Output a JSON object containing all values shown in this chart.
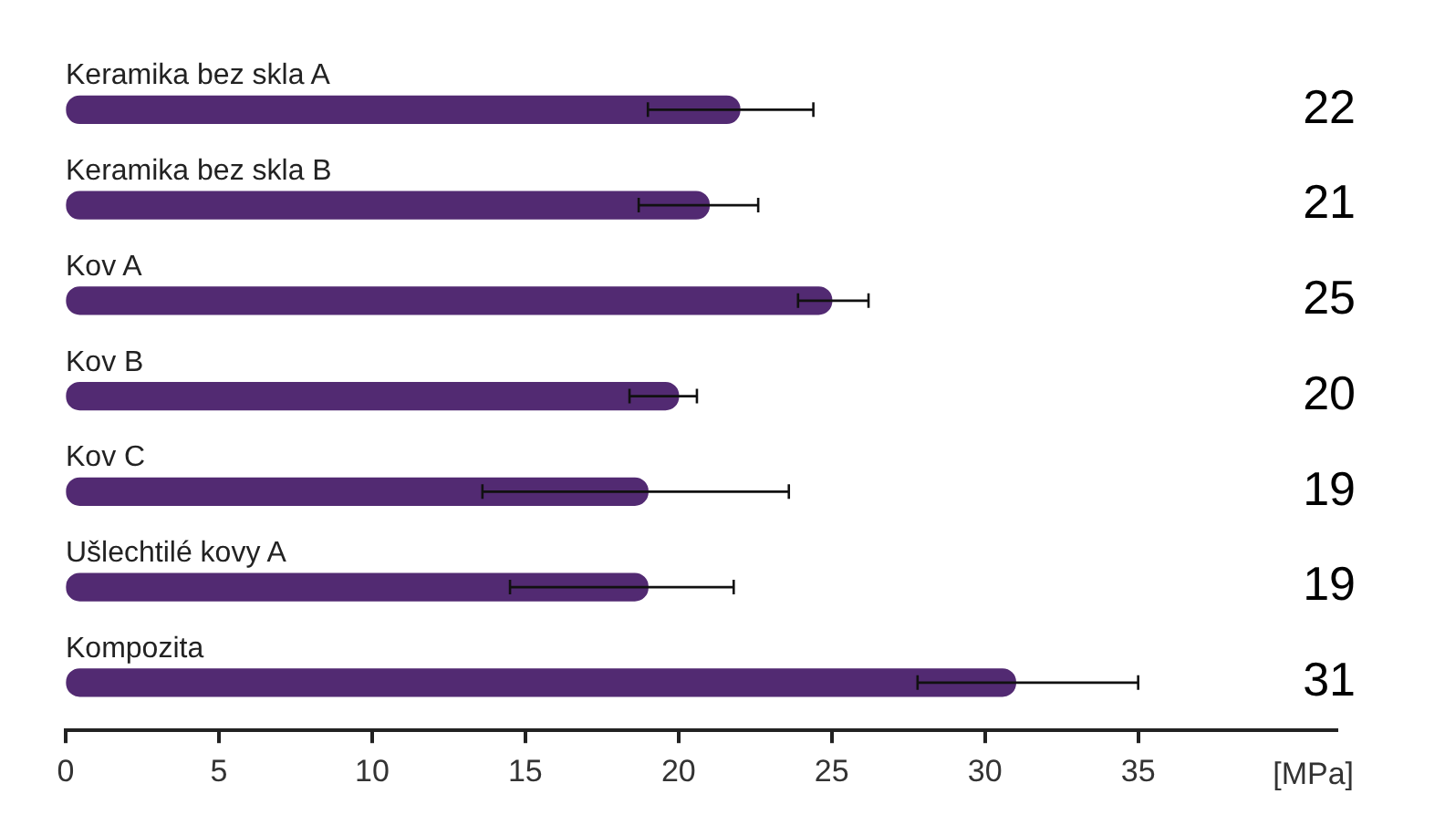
{
  "chart_data": {
    "type": "bar",
    "orientation": "horizontal",
    "xlabel": "[MPa]",
    "categories": [
      "Keramika bez skla A",
      "Keramika bez skla B",
      "Kov A",
      "Kov B",
      "Kov C",
      "Ušlechtilé kovy A",
      "Kompozita"
    ],
    "values": [
      22,
      21,
      25,
      20,
      19,
      19,
      31
    ],
    "errors": [
      [
        19.0,
        24.4
      ],
      [
        18.7,
        22.6
      ],
      [
        23.9,
        26.2
      ],
      [
        18.4,
        20.6
      ],
      [
        13.6,
        23.6
      ],
      [
        14.5,
        21.8
      ],
      [
        27.8,
        35
      ]
    ],
    "color": "#522a72",
    "xlim": [
      0,
      41.5
    ],
    "xticks": [
      0,
      5,
      10,
      15,
      20,
      25,
      30,
      35
    ],
    "grid": false,
    "legend": false,
    "data_labels": true
  }
}
